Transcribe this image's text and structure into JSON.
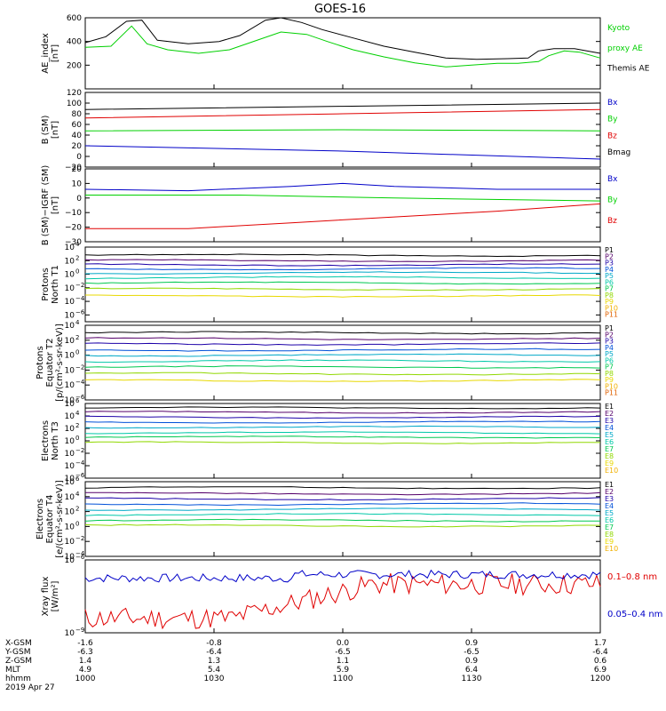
{
  "title": "GOES-16",
  "date_label": "2019 Apr 27",
  "orbit_labels": [
    "X-GSM",
    "Y-GSM",
    "Z-GSM",
    "MLT",
    "hhmm"
  ],
  "orbit_columns": [
    {
      "x": "-1.6",
      "y": "-6.3",
      "z": "1.4",
      "mlt": "4.9",
      "hhmm": "1000"
    },
    {
      "x": "-0.8",
      "y": "-6.4",
      "z": "1.3",
      "mlt": "5.4",
      "hhmm": "1030"
    },
    {
      "x": "0.0",
      "y": "-6.5",
      "z": "1.1",
      "mlt": "5.9",
      "hhmm": "1100"
    },
    {
      "x": "0.9",
      "y": "-6.5",
      "z": "0.9",
      "mlt": "6.4",
      "hhmm": "1130"
    },
    {
      "x": "1.7",
      "y": "-6.4",
      "z": "0.6",
      "mlt": "6.9",
      "hhmm": "1200"
    }
  ],
  "colors": {
    "black": "#000000",
    "red": "#e00000",
    "green": "#00d000",
    "blue": "#0000c8",
    "p_channels": [
      "#000000",
      "#55006a",
      "#1c00a8",
      "#0050d8",
      "#00a8c8",
      "#00c8a8",
      "#00c850",
      "#90d800",
      "#e8d800",
      "#f0b000",
      "#e06000",
      "#d80000"
    ]
  },
  "chart_data": [
    {
      "id": "ae",
      "type": "line",
      "ylabel_lines": [
        "AE_index",
        "[nT]"
      ],
      "ylim": [
        0,
        600
      ],
      "yticks": [
        "200",
        "400",
        "600"
      ],
      "legend": [
        {
          "label": "Kyoto",
          "color": "#00d000"
        },
        {
          "label": "proxy AE",
          "color": "#00d000"
        },
        {
          "label": "Themis AE",
          "color": "#000000"
        }
      ],
      "series": [
        {
          "name": "Kyoto proxy AE",
          "color": "#00d000",
          "x": [
            0,
            0.05,
            0.09,
            0.12,
            0.16,
            0.22,
            0.28,
            0.34,
            0.38,
            0.43,
            0.47,
            0.52,
            0.58,
            0.64,
            0.7,
            0.75,
            0.8,
            0.84,
            0.88,
            0.9,
            0.93,
            0.96,
            1.0
          ],
          "y": [
            350,
            360,
            530,
            380,
            330,
            300,
            330,
            420,
            480,
            460,
            400,
            330,
            270,
            220,
            185,
            200,
            215,
            215,
            230,
            280,
            320,
            310,
            260
          ]
        },
        {
          "name": "Themis AE",
          "color": "#000000",
          "x": [
            0,
            0.04,
            0.08,
            0.11,
            0.14,
            0.2,
            0.26,
            0.3,
            0.35,
            0.38,
            0.42,
            0.46,
            0.52,
            0.58,
            0.64,
            0.7,
            0.76,
            0.82,
            0.86,
            0.88,
            0.91,
            0.95,
            1.0
          ],
          "y": [
            390,
            440,
            570,
            580,
            410,
            380,
            400,
            450,
            580,
            600,
            560,
            500,
            430,
            360,
            310,
            260,
            250,
            255,
            260,
            320,
            340,
            340,
            300
          ]
        }
      ]
    },
    {
      "id": "bsm",
      "type": "line",
      "ylabel_lines": [
        "B (SM)",
        "[nT]"
      ],
      "ylim": [
        -20,
        120
      ],
      "yticks": [
        "−20",
        "0",
        "20",
        "40",
        "60",
        "80",
        "100",
        "120"
      ],
      "legend": [
        {
          "label": "Bx",
          "color": "#0000c8"
        },
        {
          "label": "By",
          "color": "#00d000"
        },
        {
          "label": "Bz",
          "color": "#e00000"
        },
        {
          "label": "Bmag",
          "color": "#000000"
        }
      ],
      "series": [
        {
          "name": "Bmag",
          "color": "#000000",
          "x": [
            0,
            0.5,
            1
          ],
          "y": [
            88,
            94,
            100
          ]
        },
        {
          "name": "Bz",
          "color": "#e00000",
          "x": [
            0,
            0.5,
            1
          ],
          "y": [
            72,
            80,
            88
          ]
        },
        {
          "name": "By",
          "color": "#00d000",
          "x": [
            0,
            0.5,
            1
          ],
          "y": [
            48,
            50,
            48
          ]
        },
        {
          "name": "Bx",
          "color": "#0000c8",
          "x": [
            0,
            0.5,
            1
          ],
          "y": [
            20,
            10,
            -5
          ]
        }
      ]
    },
    {
      "id": "bigrf",
      "type": "line",
      "ylabel_lines": [
        "B (SM)−IGRF (SM)",
        "[nT]"
      ],
      "ylim": [
        -30,
        20
      ],
      "yticks": [
        "−30",
        "−20",
        "−10",
        "0",
        "10",
        "20"
      ],
      "legend": [
        {
          "label": "Bx",
          "color": "#0000c8"
        },
        {
          "label": "By",
          "color": "#00d000"
        },
        {
          "label": "Bz",
          "color": "#e00000"
        }
      ],
      "series": [
        {
          "name": "Bx",
          "color": "#0000c8",
          "x": [
            0,
            0.2,
            0.4,
            0.5,
            0.6,
            0.8,
            1
          ],
          "y": [
            6,
            5,
            8,
            10,
            8,
            6,
            6
          ]
        },
        {
          "name": "By",
          "color": "#00d000",
          "x": [
            0,
            0.3,
            0.6,
            1
          ],
          "y": [
            2,
            2,
            0,
            -2
          ]
        },
        {
          "name": "Bz",
          "color": "#e00000",
          "x": [
            0,
            0.2,
            0.4,
            0.6,
            0.8,
            1
          ],
          "y": [
            -21,
            -21,
            -17,
            -13,
            -9,
            -4
          ]
        }
      ]
    },
    {
      "id": "pnorth",
      "type": "log-multi",
      "ylabel_lines": [
        "Protons",
        "North T1"
      ],
      "ylim_exp": [
        -7,
        4
      ],
      "ytick_exps": [
        4,
        2,
        0,
        -2,
        -4,
        -6
      ],
      "channels": [
        "P1",
        "P2",
        "P3",
        "P4",
        "P5",
        "P6",
        "P7",
        "P8",
        "P9",
        "P10",
        "P11"
      ],
      "levels": [
        2.8,
        2.0,
        1.4,
        0.8,
        0.2,
        -0.5,
        -1.3,
        -2.2,
        -3.2,
        null,
        null
      ]
    },
    {
      "id": "pequator",
      "type": "log-multi",
      "ylabel_lines": [
        "Protons",
        "Equator T2",
        "[p/(cm²-s-sr-keV)]"
      ],
      "ylim_exp": [
        -6,
        4
      ],
      "ytick_exps": [
        4,
        2,
        0,
        -2,
        -4,
        -6
      ],
      "channels": [
        "P1",
        "P2",
        "P3",
        "P4",
        "P5",
        "P6",
        "P7",
        "P8",
        "P9",
        "P10",
        "P11"
      ],
      "levels": [
        3.0,
        2.2,
        1.5,
        0.7,
        0,
        -0.8,
        -1.6,
        -2.5,
        -3.4,
        null,
        null
      ]
    },
    {
      "id": "enorth",
      "type": "log-multi",
      "ylabel_lines": [
        "Electrons",
        "North T3"
      ],
      "ylim_exp": [
        -6,
        6
      ],
      "ytick_exps": [
        6,
        4,
        2,
        0,
        -2,
        -4,
        -6
      ],
      "channels": [
        "E1",
        "E2",
        "E3",
        "E4",
        "E5",
        "E6",
        "E7",
        "E8",
        "E9",
        "E10"
      ],
      "levels": [
        5.3,
        4.6,
        3.8,
        3.0,
        2.2,
        1.3,
        0.6,
        -0.3,
        null,
        null
      ]
    },
    {
      "id": "eequator",
      "type": "log-multi",
      "ylabel_lines": [
        "Electrons",
        "Equator T4",
        "[e/(cm²-s-sr-keV)]"
      ],
      "ylim_exp": [
        -4,
        6
      ],
      "ytick_exps": [
        6,
        4,
        2,
        0,
        -2,
        -4
      ],
      "channels": [
        "E1",
        "E2",
        "E3",
        "E4",
        "E5",
        "E6",
        "E7",
        "E8",
        "E9",
        "E10"
      ],
      "levels": [
        5.2,
        4.4,
        3.7,
        3.0,
        2.3,
        1.6,
        0.8,
        0.1,
        null,
        null
      ]
    },
    {
      "id": "xray",
      "type": "line-log",
      "ylabel_lines": [
        "Xray flux",
        "[W/m²]"
      ],
      "ylim_exp": [
        -9,
        -6
      ],
      "ytick_exps": [
        -6,
        -9
      ],
      "legend": [
        {
          "label": "0.1–0.8 nm",
          "color": "#e00000"
        },
        {
          "label": "0.05–0.4 nm",
          "color": "#0000c8"
        }
      ]
    }
  ]
}
